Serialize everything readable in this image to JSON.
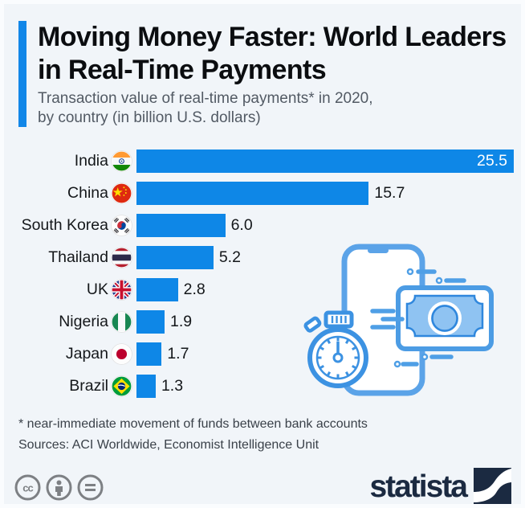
{
  "header": {
    "title": "Moving Money Faster: World Leaders in Real-Time Payments",
    "subtitle_line1": "Transaction value of real-time payments* in 2020,",
    "subtitle_line2": "by country (in billion U.S. dollars)",
    "accent_color": "#1287e8"
  },
  "chart_data": {
    "type": "bar",
    "orientation": "horizontal",
    "title": "Transaction value of real-time payments in 2020, by country (in billion U.S. dollars)",
    "categories": [
      "India",
      "China",
      "South Korea",
      "Thailand",
      "UK",
      "Nigeria",
      "Japan",
      "Brazil"
    ],
    "values": [
      25.5,
      15.7,
      6.0,
      5.2,
      2.8,
      1.9,
      1.7,
      1.3
    ],
    "value_labels": [
      "25.5",
      "15.7",
      "6.0",
      "5.2",
      "2.8",
      "1.9",
      "1.7",
      "1.3"
    ],
    "value_label_position": [
      "inside",
      "outside",
      "outside",
      "outside",
      "outside",
      "outside",
      "outside",
      "outside"
    ],
    "flags": [
      "india",
      "china",
      "south-korea",
      "thailand",
      "uk",
      "nigeria",
      "japan",
      "brazil"
    ],
    "xlim": [
      0,
      25.5
    ],
    "bar_color": "#0e87e7",
    "grid": false,
    "legend": false
  },
  "illustration": {
    "name": "smartphone-stopwatch-money-illustration",
    "color": "#4f9fe6"
  },
  "footer": {
    "footnote": "* near-immediate movement of funds between bank accounts",
    "sources": "Sources: ACI Worldwide, Economist Intelligence Unit",
    "license_icons": [
      "cc-icon",
      "attribution-icon",
      "no-derivatives-icon"
    ],
    "brand": "statista"
  }
}
